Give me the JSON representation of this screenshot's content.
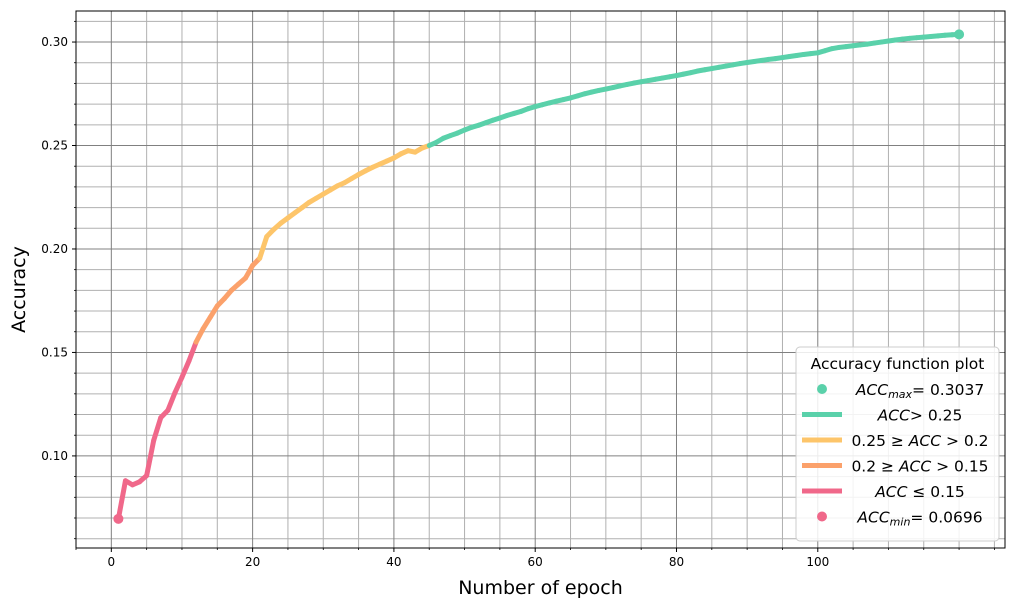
{
  "chart_data": {
    "type": "line",
    "xlabel": "Number of epoch",
    "ylabel": "Accuracy",
    "xlim": [
      -5,
      126.5
    ],
    "ylim": [
      0.0555,
      0.315
    ],
    "x_major_ticks": [
      0,
      20,
      40,
      60,
      80,
      100
    ],
    "x_minor_step": 5,
    "y_major_ticks": [
      0.1,
      0.15,
      0.2,
      0.25,
      0.3
    ],
    "y_minor_step": 0.01,
    "x_tick_labels": [
      "0",
      "20",
      "40",
      "60",
      "80",
      "100"
    ],
    "y_tick_labels": [
      "0.10",
      "0.15",
      "0.20",
      "0.25",
      "0.30"
    ],
    "grid": true,
    "legend": {
      "title": "Accuracy function plot",
      "placement": "lower-right",
      "entries": [
        {
          "kind": "marker",
          "color": "#5ad1aa",
          "parts": [
            [
              "it",
              "ACC"
            ],
            [
              "sub",
              "max"
            ],
            [
              "",
              "= 0.3037"
            ]
          ]
        },
        {
          "kind": "line",
          "color": "#5ad1aa",
          "parts": [
            [
              "it",
              "ACC"
            ],
            [
              "",
              "> 0.25"
            ]
          ]
        },
        {
          "kind": "line",
          "color": "#fdc56a",
          "parts": [
            [
              "",
              "0.25 ≥ "
            ],
            [
              "it",
              "ACC"
            ],
            [
              "",
              " > 0.2"
            ]
          ]
        },
        {
          "kind": "line",
          "color": "#fba16b",
          "parts": [
            [
              "",
              "0.2 ≥ "
            ],
            [
              "it",
              "ACC"
            ],
            [
              "",
              " > 0.15"
            ]
          ]
        },
        {
          "kind": "line",
          "color": "#f0688a",
          "parts": [
            [
              "it",
              "ACC"
            ],
            [
              "",
              " ≤ 0.15"
            ]
          ]
        },
        {
          "kind": "marker",
          "color": "#f0688a",
          "parts": [
            [
              "it",
              "ACC"
            ],
            [
              "sub",
              "min"
            ],
            [
              "",
              "= 0.0696"
            ]
          ]
        }
      ]
    },
    "thresholds": [
      0.15,
      0.2,
      0.25
    ],
    "colors": {
      "above_025": "#5ad1aa",
      "between_02_025": "#fdc56a",
      "between_015_02": "#fba16b",
      "below_015": "#f0688a"
    },
    "max_point": {
      "x": 120,
      "y": 0.3037
    },
    "min_point": {
      "x": 1,
      "y": 0.0696
    },
    "series": [
      {
        "x": [
          1,
          2,
          3,
          4,
          5,
          6,
          7,
          8,
          9,
          10,
          11,
          12,
          13,
          14,
          15,
          16,
          17,
          18,
          19,
          20,
          21,
          22,
          23,
          24,
          25,
          26,
          27,
          28,
          29,
          30,
          31,
          32,
          33,
          34,
          35,
          36,
          37,
          38,
          39,
          40,
          41,
          42,
          43,
          44,
          45,
          46,
          47,
          48,
          49,
          50,
          51,
          52,
          53,
          54,
          55,
          56,
          57,
          58,
          59,
          60,
          61,
          62,
          63,
          64,
          65,
          66,
          67,
          68,
          69,
          70,
          71,
          72,
          73,
          74,
          75,
          76,
          77,
          78,
          79,
          80,
          81,
          82,
          83,
          84,
          85,
          86,
          87,
          88,
          89,
          90,
          91,
          92,
          93,
          94,
          95,
          96,
          97,
          98,
          99,
          100,
          101,
          102,
          103,
          104,
          105,
          106,
          107,
          108,
          109,
          110,
          111,
          112,
          113,
          114,
          115,
          116,
          117,
          118,
          119,
          120
        ],
        "y": [
          0.0696,
          0.088,
          0.086,
          0.0875,
          0.0905,
          0.1075,
          0.1185,
          0.122,
          0.1305,
          0.138,
          0.146,
          0.155,
          0.1615,
          0.167,
          0.1725,
          0.176,
          0.18,
          0.183,
          0.186,
          0.192,
          0.1955,
          0.206,
          0.2095,
          0.2125,
          0.215,
          0.2175,
          0.22,
          0.2225,
          0.2245,
          0.2265,
          0.2285,
          0.2305,
          0.232,
          0.234,
          0.236,
          0.2378,
          0.2395,
          0.241,
          0.2425,
          0.244,
          0.246,
          0.2475,
          0.2468,
          0.2488,
          0.25,
          0.2515,
          0.2535,
          0.2548,
          0.256,
          0.2575,
          0.2588,
          0.2598,
          0.261,
          0.2622,
          0.2633,
          0.2645,
          0.2655,
          0.2665,
          0.2678,
          0.2688,
          0.2697,
          0.2706,
          0.2714,
          0.2722,
          0.273,
          0.274,
          0.275,
          0.2758,
          0.2766,
          0.2773,
          0.278,
          0.2788,
          0.2795,
          0.2802,
          0.2808,
          0.2814,
          0.282,
          0.2826,
          0.2832,
          0.2838,
          0.2845,
          0.2852,
          0.286,
          0.2866,
          0.2872,
          0.2878,
          0.2884,
          0.289,
          0.2896,
          0.2901,
          0.2906,
          0.2911,
          0.2916,
          0.292,
          0.2925,
          0.293,
          0.2935,
          0.294,
          0.2944,
          0.2948,
          0.2958,
          0.2968,
          0.2974,
          0.2978,
          0.2982,
          0.2986,
          0.299,
          0.2995,
          0.3,
          0.3005,
          0.301,
          0.3014,
          0.3018,
          0.3021,
          0.3024,
          0.3027,
          0.303,
          0.3033,
          0.3035,
          0.3037
        ]
      }
    ]
  }
}
